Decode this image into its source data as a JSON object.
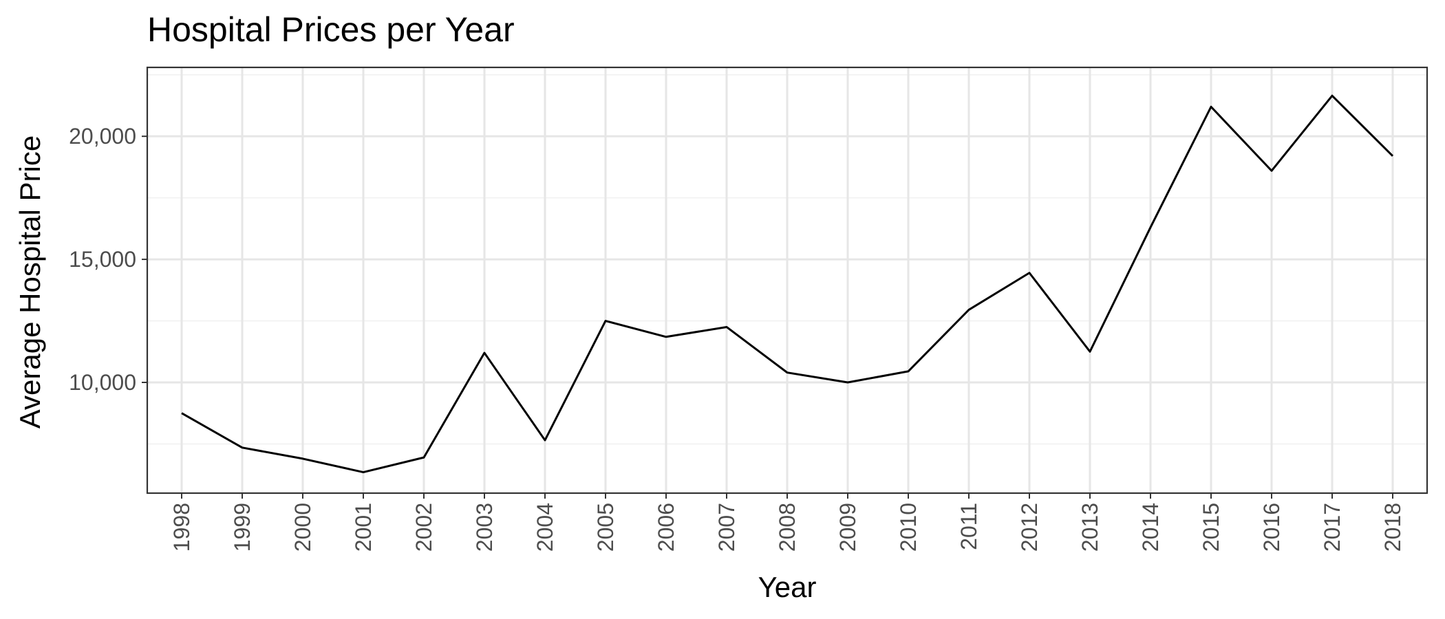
{
  "chart_data": {
    "type": "line",
    "title": "Hospital Prices per Year",
    "xlabel": "Year",
    "ylabel": "Average Hospital Price",
    "x": [
      "1998",
      "1999",
      "2000",
      "2001",
      "2002",
      "2003",
      "2004",
      "2005",
      "2006",
      "2007",
      "2008",
      "2009",
      "2010",
      "2011",
      "2012",
      "2013",
      "2014",
      "2015",
      "2016",
      "2017",
      "2018"
    ],
    "series": [
      {
        "values": [
          8750,
          7350,
          6900,
          6350,
          6950,
          11200,
          7650,
          12500,
          11850,
          12250,
          10400,
          10000,
          10450,
          12950,
          14450,
          11250,
          16300,
          21200,
          18600,
          21650,
          19200
        ]
      }
    ],
    "ylim": [
      5500,
      22800
    ],
    "yticks": [
      10000,
      15000,
      20000
    ],
    "ytick_labels": [
      "10,000",
      "15,000",
      "20,000"
    ],
    "grid": true,
    "line_color": "#000000"
  }
}
